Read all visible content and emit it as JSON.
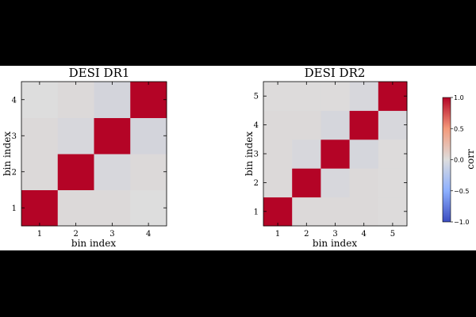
{
  "chart_data": [
    {
      "type": "heatmap",
      "title": "DESI DR1",
      "xlabel": "bin index",
      "ylabel": "bin index",
      "x": [
        1,
        2,
        3,
        4
      ],
      "y": [
        1,
        2,
        3,
        4
      ],
      "xtick_labels": [
        "1",
        "2",
        "3",
        "4"
      ],
      "ytick_labels": [
        "1",
        "2",
        "3",
        "4"
      ],
      "values": [
        [
          1.0,
          0.02,
          0.02,
          0.0
        ],
        [
          0.02,
          1.0,
          -0.04,
          0.02
        ],
        [
          0.02,
          -0.04,
          1.0,
          -0.06
        ],
        [
          0.0,
          0.02,
          -0.06,
          1.0
        ]
      ]
    },
    {
      "type": "heatmap",
      "title": "DESI DR2",
      "xlabel": "bin index",
      "ylabel": "bin index",
      "x": [
        1,
        2,
        3,
        4,
        5
      ],
      "y": [
        1,
        2,
        3,
        4,
        5
      ],
      "xtick_labels": [
        "1",
        "2",
        "3",
        "4",
        "5"
      ],
      "ytick_labels": [
        "1",
        "2",
        "3",
        "4",
        "5"
      ],
      "values": [
        [
          1.0,
          0.02,
          0.02,
          0.02,
          0.01
        ],
        [
          0.02,
          1.0,
          -0.04,
          0.02,
          0.01
        ],
        [
          0.02,
          -0.04,
          1.0,
          -0.05,
          0.01
        ],
        [
          0.02,
          0.02,
          -0.05,
          1.0,
          -0.04
        ],
        [
          0.01,
          0.01,
          0.01,
          -0.04,
          1.0
        ]
      ]
    }
  ],
  "colorbar": {
    "label": "corr",
    "range": [
      -1.0,
      1.0
    ],
    "tick_labels": [
      "1.0",
      "0.5",
      "0.0",
      "−0.5",
      "−1.0"
    ],
    "tick_values": [
      1.0,
      0.5,
      0.0,
      -0.5,
      -1.0
    ],
    "colors": {
      "low": "#3b4cc0",
      "mid": "#dddddd",
      "high": "#b40426"
    }
  }
}
